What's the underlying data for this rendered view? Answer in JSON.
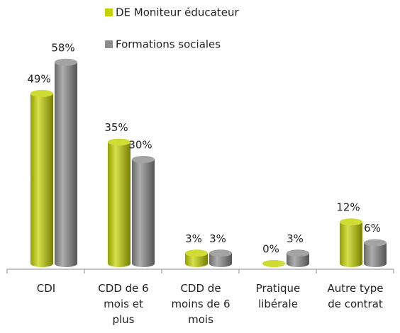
{
  "chart_data": {
    "type": "bar",
    "categories": [
      "CDI",
      "CDD de 6\nmois et\nplus",
      "CDD de\nmoins de 6\nmois",
      "Pratique\nlibérale",
      "Autre type\nde contrat"
    ],
    "series": [
      {
        "name": "DE Moniteur éducateur",
        "color": "#c4d300",
        "values": [
          49,
          35,
          3,
          0,
          12
        ],
        "value_labels": [
          "49%",
          "35%",
          "3%",
          "0%",
          "12%"
        ]
      },
      {
        "name": "Formations sociales",
        "color": "#8c8c8c",
        "values": [
          58,
          30,
          3,
          3,
          6
        ],
        "value_labels": [
          "58%",
          "30%",
          "3%",
          "3%",
          "6%"
        ]
      }
    ]
  }
}
